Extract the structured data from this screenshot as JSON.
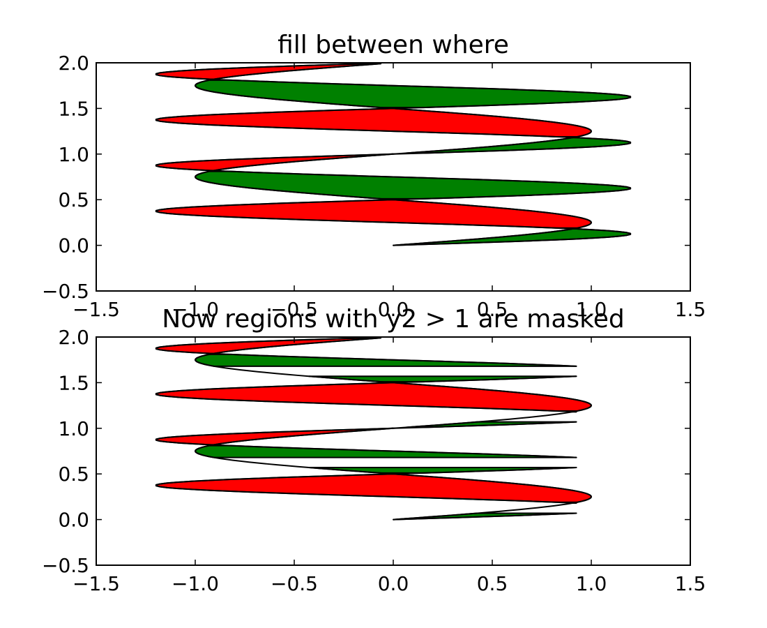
{
  "colors": {
    "background": "#ffffff",
    "axes_edge": "#000000",
    "curve_stroke": "#000000",
    "fill_where_y2_ge_y1": "#008000",
    "fill_where_y2_le_y1": "#ff0000"
  },
  "chart_data": [
    {
      "type": "area",
      "title": "fill between where",
      "xlabel": "",
      "ylabel": "",
      "xlim": [
        -1.5,
        1.5
      ],
      "ylim": [
        -0.5,
        2.0
      ],
      "x_ticks": [
        "−1.5",
        "−1.0",
        "−0.5",
        "0.0",
        "0.5",
        "1.0",
        "1.5"
      ],
      "y_ticks": [
        "−0.5",
        "0.0",
        "0.5",
        "1.0",
        "1.5",
        "2.0"
      ],
      "grid": false,
      "legend": "none",
      "y": {
        "start": 0.0,
        "stop": 2.0,
        "step": 0.01
      },
      "curves": [
        {
          "role": "y1",
          "formula": "sin(2*pi*y)"
        },
        {
          "role": "y2",
          "formula": "1.2*sin(4*pi*y)"
        }
      ],
      "fills": [
        {
          "where": "y2 >= y1",
          "color": "#008000"
        },
        {
          "where": "y2 <= y1",
          "color": "#ff0000"
        }
      ],
      "mask": null
    },
    {
      "type": "area",
      "title": "Now regions with y2 > 1 are masked",
      "xlabel": "",
      "ylabel": "",
      "xlim": [
        -1.5,
        1.5
      ],
      "ylim": [
        -0.5,
        2.0
      ],
      "x_ticks": [
        "−1.5",
        "−1.0",
        "−0.5",
        "0.0",
        "0.5",
        "1.0",
        "1.5"
      ],
      "y_ticks": [
        "−0.5",
        "0.0",
        "0.5",
        "1.0",
        "1.5",
        "2.0"
      ],
      "grid": false,
      "legend": "none",
      "y": {
        "start": 0.0,
        "stop": 2.0,
        "step": 0.01
      },
      "curves": [
        {
          "role": "y1",
          "formula": "sin(2*pi*y)"
        },
        {
          "role": "y2",
          "formula": "1.2*sin(4*pi*y)"
        }
      ],
      "fills": [
        {
          "where": "y2 >= y1",
          "color": "#008000"
        },
        {
          "where": "y2 <= y1",
          "color": "#ff0000"
        }
      ],
      "mask": {
        "series": "y2",
        "condition": "y2 > 1"
      }
    }
  ]
}
